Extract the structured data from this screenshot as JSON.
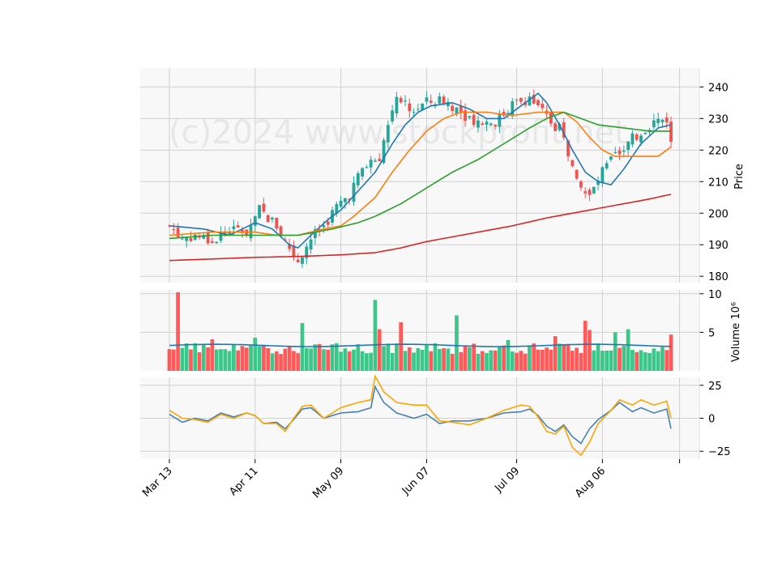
{
  "watermark": "(c)2024 www.stockprofit.net",
  "colors": {
    "panel_bg": "#f8f8f8",
    "grid": "#d0d0d0",
    "up": "#26a69a",
    "up_vol": "#3cc68a",
    "down": "#ef5350",
    "down_vol": "#ff5a5a",
    "ma_fast": "#1f77b4",
    "ma_mid": "#ff7f0e",
    "ma_slow": "#2ca02c",
    "ma_long": "#d62728",
    "osc_a": "#4682b4",
    "osc_b": "#ffa500"
  },
  "chart_data": [
    {
      "type": "candlestick",
      "name": "price",
      "ylabel": "Price",
      "ylim": [
        178,
        246
      ],
      "yticks": [
        180,
        190,
        200,
        210,
        220,
        230,
        240
      ],
      "xticks": [
        "Mar 13",
        "Apr 11",
        "May 09",
        "Jun 07",
        "Jul 09",
        "Aug 06",
        ""
      ],
      "grid": true,
      "anchors": [
        [
          0,
          196
        ],
        [
          3,
          192
        ],
        [
          6,
          193
        ],
        [
          10,
          191
        ],
        [
          14,
          195
        ],
        [
          18,
          194
        ],
        [
          21,
          201
        ],
        [
          25,
          196
        ],
        [
          27,
          191
        ],
        [
          30,
          185
        ],
        [
          33,
          192
        ],
        [
          36,
          196
        ],
        [
          39,
          202
        ],
        [
          42,
          206
        ],
        [
          45,
          214
        ],
        [
          49,
          218
        ],
        [
          51,
          228
        ],
        [
          53,
          238
        ],
        [
          56,
          232
        ],
        [
          60,
          235
        ],
        [
          64,
          236
        ],
        [
          68,
          232
        ],
        [
          72,
          229
        ],
        [
          76,
          229
        ],
        [
          80,
          234
        ],
        [
          84,
          237
        ],
        [
          86,
          233
        ],
        [
          89,
          229
        ],
        [
          92,
          225
        ],
        [
          95,
          209
        ],
        [
          98,
          205
        ],
        [
          101,
          213
        ],
        [
          104,
          218
        ],
        [
          107,
          222
        ],
        [
          110,
          226
        ],
        [
          113,
          229
        ],
        [
          116,
          230
        ],
        [
          117,
          222
        ]
      ],
      "series": [
        {
          "name": "MA fast",
          "color": "#1f77b4",
          "anchors": [
            [
              0,
              196
            ],
            [
              8,
              195
            ],
            [
              14,
              193
            ],
            [
              20,
              197
            ],
            [
              24,
              195
            ],
            [
              28,
              190
            ],
            [
              30,
              189
            ],
            [
              33,
              193
            ],
            [
              37,
              198
            ],
            [
              40,
              201
            ],
            [
              44,
              207
            ],
            [
              48,
              213
            ],
            [
              52,
              222
            ],
            [
              55,
              228
            ],
            [
              58,
              232
            ],
            [
              61,
              234
            ],
            [
              66,
              235
            ],
            [
              70,
              233
            ],
            [
              74,
              230
            ],
            [
              78,
              230
            ],
            [
              82,
              234
            ],
            [
              86,
              238
            ],
            [
              88,
              235
            ],
            [
              91,
              228
            ],
            [
              94,
              220
            ],
            [
              97,
              213
            ],
            [
              100,
              210
            ],
            [
              103,
              209
            ],
            [
              106,
              214
            ],
            [
              110,
              222
            ],
            [
              114,
              227
            ],
            [
              117,
              228
            ]
          ]
        },
        {
          "name": "MA mid",
          "color": "#ff7f0e",
          "anchors": [
            [
              0,
              193
            ],
            [
              10,
              194
            ],
            [
              20,
              194
            ],
            [
              25,
              193
            ],
            [
              30,
              193
            ],
            [
              36,
              195
            ],
            [
              40,
              196
            ],
            [
              43,
              199
            ],
            [
              48,
              205
            ],
            [
              52,
              213
            ],
            [
              56,
              220
            ],
            [
              60,
              226
            ],
            [
              64,
              230
            ],
            [
              68,
              232
            ],
            [
              74,
              232
            ],
            [
              80,
              231
            ],
            [
              86,
              232
            ],
            [
              92,
              232
            ],
            [
              95,
              229
            ],
            [
              98,
              224
            ],
            [
              101,
              220
            ],
            [
              104,
              218
            ],
            [
              110,
              218
            ],
            [
              114,
              218
            ],
            [
              117,
              221
            ]
          ]
        },
        {
          "name": "MA slow",
          "color": "#2ca02c",
          "anchors": [
            [
              0,
              192
            ],
            [
              10,
              193
            ],
            [
              20,
              193
            ],
            [
              30,
              193
            ],
            [
              38,
              195
            ],
            [
              44,
              197
            ],
            [
              48,
              199
            ],
            [
              54,
              203
            ],
            [
              60,
              208
            ],
            [
              66,
              213
            ],
            [
              72,
              217
            ],
            [
              78,
              222
            ],
            [
              84,
              227
            ],
            [
              88,
              230
            ],
            [
              92,
              232
            ],
            [
              96,
              230
            ],
            [
              100,
              228
            ],
            [
              106,
              227
            ],
            [
              112,
              226
            ],
            [
              117,
              226
            ]
          ]
        },
        {
          "name": "MA long",
          "color": "#d62728",
          "anchors": [
            [
              0,
              185
            ],
            [
              10,
              185.5
            ],
            [
              20,
              186
            ],
            [
              30,
              186.3
            ],
            [
              40,
              186.8
            ],
            [
              48,
              187.5
            ],
            [
              54,
              189
            ],
            [
              60,
              191
            ],
            [
              70,
              193.5
            ],
            [
              80,
              196
            ],
            [
              88,
              198.5
            ],
            [
              96,
              200.5
            ],
            [
              104,
              202.5
            ],
            [
              112,
              204.5
            ],
            [
              117,
              206
            ]
          ]
        }
      ]
    },
    {
      "type": "bar",
      "name": "volume",
      "ylabel": "Volume  10⁶",
      "ylim": [
        0,
        10.5
      ],
      "yticks": [
        5,
        10
      ],
      "average": 3.3,
      "spikes": [
        [
          2,
          10.2
        ],
        [
          10,
          4.1
        ],
        [
          20,
          4.3
        ],
        [
          31,
          6.2
        ],
        [
          48,
          9.2
        ],
        [
          49,
          5.4
        ],
        [
          54,
          6.3
        ],
        [
          67,
          7.2
        ],
        [
          79,
          4.0
        ],
        [
          90,
          4.5
        ],
        [
          97,
          6.5
        ],
        [
          98,
          5.3
        ],
        [
          104,
          5.0
        ],
        [
          107,
          5.4
        ],
        [
          117,
          4.7
        ]
      ]
    },
    {
      "type": "line",
      "name": "oscillator",
      "ylim": [
        -31,
        31
      ],
      "yticks": [
        25,
        0,
        -25
      ],
      "series": [
        {
          "name": "osc A",
          "color": "#4682b4",
          "anchors": [
            [
              0,
              3
            ],
            [
              3,
              -3
            ],
            [
              6,
              0
            ],
            [
              9,
              -2
            ],
            [
              12,
              4
            ],
            [
              15,
              1
            ],
            [
              18,
              4
            ],
            [
              20,
              2
            ],
            [
              22,
              -4
            ],
            [
              25,
              -3
            ],
            [
              27,
              -8
            ],
            [
              29,
              -1
            ],
            [
              31,
              7
            ],
            [
              33,
              8
            ],
            [
              36,
              0
            ],
            [
              40,
              4
            ],
            [
              44,
              5
            ],
            [
              47,
              8
            ],
            [
              48,
              24
            ],
            [
              50,
              12
            ],
            [
              53,
              4
            ],
            [
              57,
              0
            ],
            [
              60,
              3
            ],
            [
              63,
              -4
            ],
            [
              66,
              -2
            ],
            [
              70,
              -2
            ],
            [
              74,
              0
            ],
            [
              78,
              4
            ],
            [
              82,
              5
            ],
            [
              84,
              7
            ],
            [
              86,
              2
            ],
            [
              88,
              -6
            ],
            [
              90,
              -10
            ],
            [
              92,
              -5
            ],
            [
              94,
              -14
            ],
            [
              96,
              -19
            ],
            [
              98,
              -8
            ],
            [
              100,
              -1
            ],
            [
              103,
              6
            ],
            [
              105,
              12
            ],
            [
              108,
              5
            ],
            [
              110,
              8
            ],
            [
              113,
              4
            ],
            [
              116,
              7
            ],
            [
              117,
              -8
            ]
          ]
        },
        {
          "name": "osc B",
          "color": "#ffa500",
          "anchors": [
            [
              0,
              6
            ],
            [
              3,
              0
            ],
            [
              6,
              -1
            ],
            [
              9,
              -3
            ],
            [
              12,
              3
            ],
            [
              15,
              0
            ],
            [
              18,
              4
            ],
            [
              20,
              2
            ],
            [
              22,
              -4
            ],
            [
              25,
              -4
            ],
            [
              27,
              -10
            ],
            [
              29,
              0
            ],
            [
              31,
              9
            ],
            [
              33,
              10
            ],
            [
              36,
              0
            ],
            [
              40,
              8
            ],
            [
              44,
              12
            ],
            [
              47,
              14
            ],
            [
              48,
              32
            ],
            [
              50,
              20
            ],
            [
              53,
              12
            ],
            [
              57,
              10
            ],
            [
              60,
              10
            ],
            [
              63,
              -2
            ],
            [
              66,
              -3
            ],
            [
              70,
              -5
            ],
            [
              74,
              0
            ],
            [
              78,
              6
            ],
            [
              82,
              10
            ],
            [
              84,
              9
            ],
            [
              86,
              1
            ],
            [
              88,
              -10
            ],
            [
              90,
              -12
            ],
            [
              92,
              -6
            ],
            [
              94,
              -22
            ],
            [
              96,
              -28
            ],
            [
              98,
              -18
            ],
            [
              100,
              -4
            ],
            [
              103,
              6
            ],
            [
              105,
              14
            ],
            [
              108,
              10
            ],
            [
              110,
              14
            ],
            [
              113,
              10
            ],
            [
              116,
              13
            ],
            [
              117,
              0
            ]
          ]
        }
      ]
    }
  ]
}
